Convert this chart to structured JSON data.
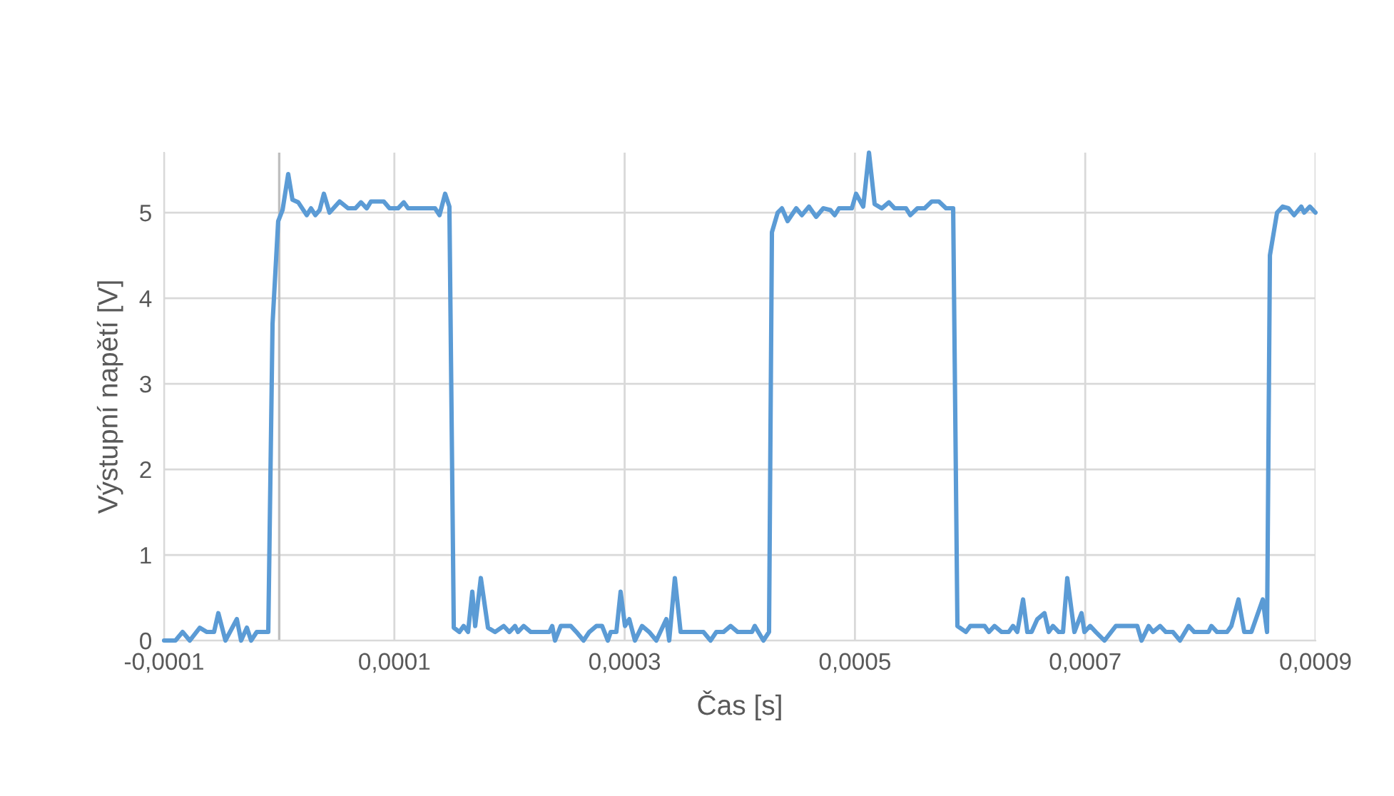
{
  "chart_data": {
    "type": "line",
    "xlabel": "Čas [s]",
    "ylabel": "Výstupní napětí [V]",
    "x": [
      -0.0001,
      -9.01e-05,
      -8.39e-05,
      -7.77e-05,
      -6.9e-05,
      -6.28e-05,
      -5.66e-05,
      -5.29e-05,
      -4.67e-05,
      -3.68e-05,
      -3.31e-05,
      -2.81e-05,
      -2.44e-05,
      -1.95e-05,
      -9.5e-06,
      -5.8e-06,
      -9e-07,
      2.9e-06,
      7.8e-06,
      1.15e-05,
      1.65e-05,
      2.39e-05,
      2.76e-05,
      3.14e-05,
      3.51e-05,
      3.88e-05,
      4.37e-05,
      5.24e-05,
      5.99e-05,
      6.61e-05,
      7.1e-05,
      7.6e-05,
      7.97e-05,
      9.08e-05,
      9.58e-05,
      0.0001032,
      0.0001082,
      0.0001119,
      0.0001354,
      0.0001392,
      0.0001441,
      0.0001478,
      0.0001516,
      0.0001565,
      0.0001602,
      0.000164,
      0.0001677,
      0.0001702,
      0.0001751,
      0.0001813,
      0.0001875,
      0.0001949,
      0.0001999,
      0.0002048,
      0.0002073,
      0.0002123,
      0.0002185,
      0.0002346,
      0.0002371,
      0.0002395,
      0.0002445,
      0.0002532,
      0.0002581,
      0.0002643,
      0.0002693,
      0.0002755,
      0.0002804,
      0.0002854,
      0.0002879,
      0.0002928,
      0.0002965,
      0.0003003,
      0.000304,
      0.0003089,
      0.0003151,
      0.0003213,
      0.0003275,
      0.0003362,
      0.0003387,
      0.0003436,
      0.0003486,
      0.0003684,
      0.0003746,
      0.0003796,
      0.0003858,
      0.000392,
      0.0003982,
      0.0004106,
      0.000413,
      0.0004205,
      0.0004254,
      0.0004279,
      0.0004329,
      0.0004366,
      0.0004415,
      0.000449,
      0.0004539,
      0.0004601,
      0.0004663,
      0.0004725,
      0.0004787,
      0.0004824,
      0.0004861,
      0.0004973,
      0.000501,
      0.0005072,
      0.0005122,
      0.0005171,
      0.0005233,
      0.0005295,
      0.0005345,
      0.0005444,
      0.0005481,
      0.0005543,
      0.0005605,
      0.0005667,
      0.0005729,
      0.0005791,
      0.0005853,
      0.000589,
      0.0005964,
      0.0006002,
      0.0006126,
      0.0006163,
      0.0006212,
      0.0006274,
      0.0006336,
      0.0006373,
      0.000641,
      0.000646,
      0.0006497,
      0.0006534,
      0.0006584,
      0.0006646,
      0.0006683,
      0.000672,
      0.000677,
      0.0006807,
      0.0006844,
      0.0006906,
      0.0006968,
      0.0006993,
      0.0007043,
      0.0007092,
      0.0007167,
      0.0007266,
      0.0007452,
      0.0007489,
      0.0007551,
      0.0007588,
      0.000765,
      0.00077,
      0.0007761,
      0.0007823,
      0.0007898,
      0.0007947,
      0.0008071,
      0.0008096,
      0.0008145,
      0.0008232,
      0.0008269,
      0.0008331,
      0.0008381,
      0.0008443,
      0.0008542,
      0.0008579,
      0.0008604,
      0.0008666,
      0.0008715,
      0.0008765,
      0.0008814,
      0.0008876,
      0.0008901,
      0.0008951,
      0.0009
    ],
    "series": [
      {
        "color": "#5b9bd5",
        "values": [
          0,
          0,
          0.1,
          0,
          0.15,
          0.1,
          0.1,
          0.32,
          0,
          0.25,
          0,
          0.15,
          0,
          0.1,
          0.1,
          3.7,
          4.9,
          5.03,
          5.45,
          5.15,
          5.12,
          4.97,
          5.05,
          4.97,
          5.03,
          5.22,
          5,
          5.13,
          5.05,
          5.05,
          5.12,
          5.05,
          5.13,
          5.13,
          5.05,
          5.05,
          5.12,
          5.05,
          5.05,
          4.97,
          5.22,
          5.07,
          0.15,
          0.1,
          0.17,
          0.1,
          0.57,
          0.17,
          0.73,
          0.15,
          0.1,
          0.17,
          0.1,
          0.17,
          0.1,
          0.17,
          0.1,
          0.1,
          0.17,
          0,
          0.17,
          0.17,
          0.1,
          0,
          0.1,
          0.17,
          0.17,
          0,
          0.1,
          0.1,
          0.57,
          0.17,
          0.25,
          0,
          0.17,
          0.1,
          0,
          0.25,
          0,
          0.73,
          0.1,
          0.1,
          0,
          0.1,
          0.1,
          0.17,
          0.1,
          0.1,
          0.17,
          0,
          0.1,
          4.77,
          5,
          5.05,
          4.9,
          5.05,
          4.97,
          5.07,
          4.95,
          5.05,
          5.03,
          4.97,
          5.05,
          5.05,
          5.22,
          5.07,
          5.7,
          5.1,
          5.05,
          5.12,
          5.05,
          5.05,
          4.97,
          5.05,
          5.05,
          5.13,
          5.13,
          5.05,
          5.05,
          0.17,
          0.1,
          0.17,
          0.17,
          0.1,
          0.17,
          0.1,
          0.1,
          0.17,
          0.1,
          0.48,
          0.1,
          0.1,
          0.25,
          0.32,
          0.1,
          0.17,
          0.1,
          0.1,
          0.73,
          0.1,
          0.32,
          0.1,
          0.17,
          0.1,
          0,
          0.17,
          0.17,
          0,
          0.17,
          0.1,
          0.17,
          0.1,
          0.1,
          0,
          0.17,
          0.1,
          0.1,
          0.17,
          0.1,
          0.1,
          0.17,
          0.48,
          0.1,
          0.1,
          0.48,
          0.1,
          4.5,
          5,
          5.07,
          5.05,
          4.97,
          5.07,
          5,
          5.07,
          5
        ]
      }
    ],
    "xlim": [
      -0.0001,
      0.0009
    ],
    "xticks": [
      {
        "value": -0.0001,
        "label": "-0,0001"
      },
      {
        "value": 0.0001,
        "label": "0,0001"
      },
      {
        "value": 0.0003,
        "label": "0,0003"
      },
      {
        "value": 0.0005,
        "label": "0,0005"
      },
      {
        "value": 0.0007,
        "label": "0,0007"
      },
      {
        "value": 0.0009,
        "label": "0,0009"
      }
    ],
    "ylim": [
      0,
      5.7
    ],
    "yticks": [
      0,
      1,
      2,
      3,
      4,
      5
    ],
    "ref_lines": [
      {
        "axis": "x",
        "value": 0,
        "color": "#bfbfbf"
      }
    ],
    "grid": true,
    "marker": "none",
    "line_style": "solid"
  }
}
